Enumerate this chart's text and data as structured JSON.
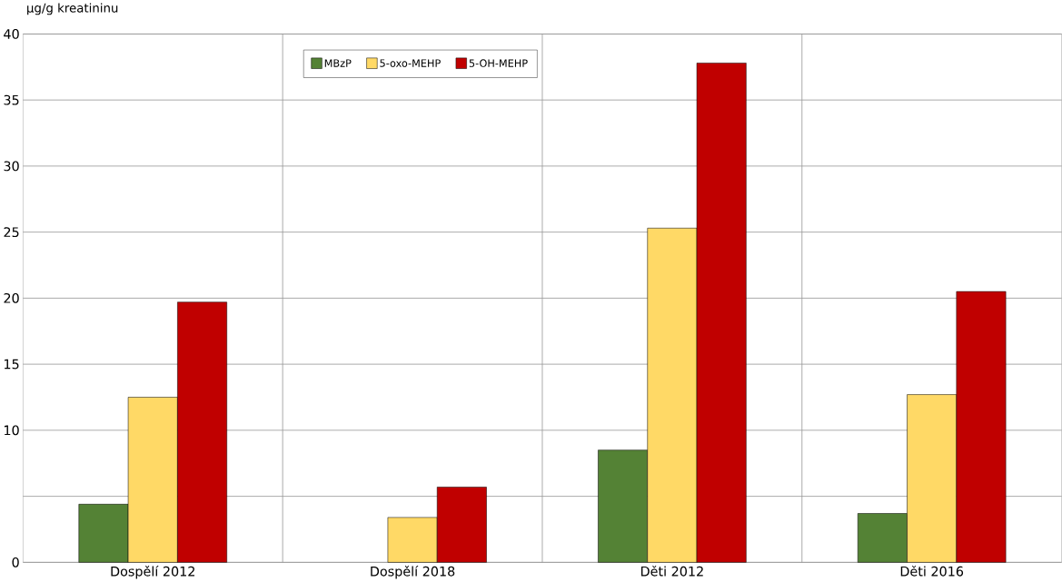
{
  "chart_data": {
    "type": "bar",
    "ylabel": "µg/g kreatininu",
    "categories": [
      "Dospělí 2012",
      "Dospělí 2018",
      "Děti 2012",
      "Děti 2016"
    ],
    "series": [
      {
        "name": "MBzP",
        "color": "#548235",
        "values": [
          4.4,
          null,
          8.5,
          3.7
        ]
      },
      {
        "name": "5-oxo-MEHP",
        "color": "#ffd966",
        "values": [
          12.5,
          3.4,
          25.3,
          12.7
        ]
      },
      {
        "name": "5-OH-MEHP",
        "color": "#c00000",
        "values": [
          19.7,
          5.7,
          37.8,
          20.5
        ]
      }
    ],
    "ylim": [
      0,
      40
    ],
    "yticks": [
      0,
      {
        "value": 5,
        "label": null
      },
      10,
      15,
      20,
      25,
      30,
      35,
      40
    ],
    "grid": true,
    "legend": "top left"
  }
}
